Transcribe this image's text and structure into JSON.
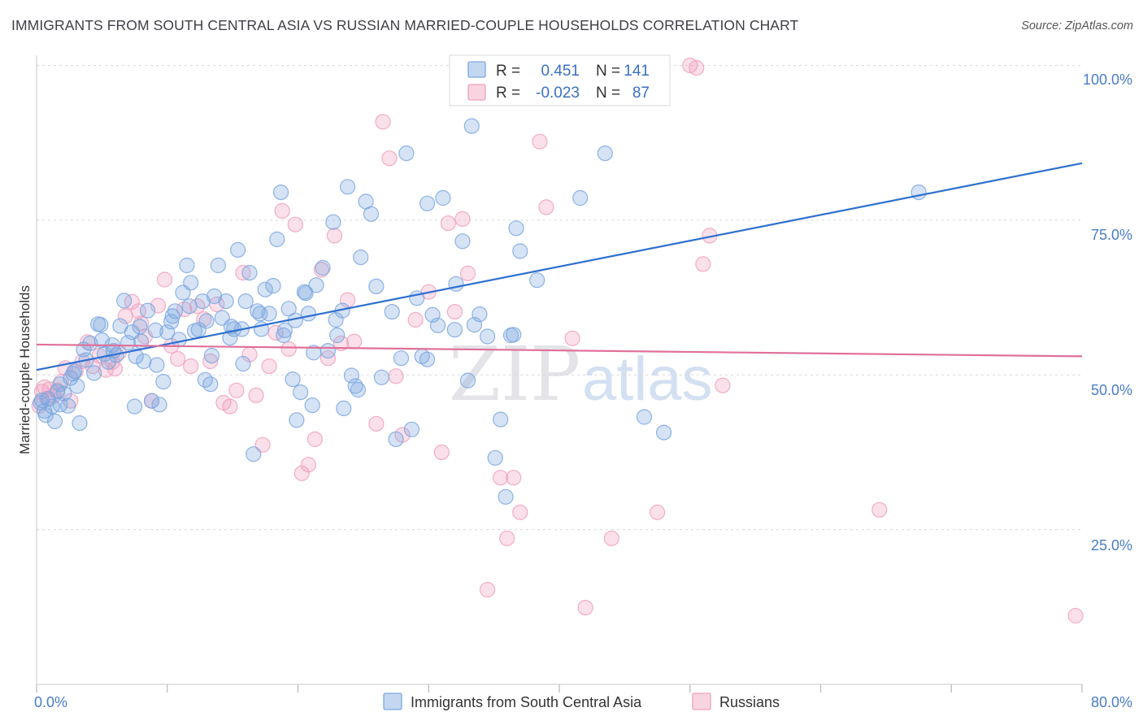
{
  "header": {
    "title": "IMMIGRANTS FROM SOUTH CENTRAL ASIA VS RUSSIAN MARRIED-COUPLE HOUSEHOLDS CORRELATION CHART",
    "source": "Source: ZipAtlas.com"
  },
  "watermark": {
    "zip": "ZIP",
    "atlas": "atlas"
  },
  "legend": {
    "rows": [
      {
        "r_label": "R =",
        "r_value": "0.451",
        "n_label": "N =",
        "n_value": "141"
      },
      {
        "r_label": "R =",
        "r_value": "-0.023",
        "n_label": "N =",
        "n_value": "87"
      }
    ]
  },
  "chart_data": {
    "type": "scatter",
    "title": "IMMIGRANTS FROM SOUTH CENTRAL ASIA VS RUSSIAN MARRIED-COUPLE HOUSEHOLDS CORRELATION CHART",
    "xlabel": "",
    "ylabel": "Married-couple Households",
    "xlim": [
      0,
      80
    ],
    "ylim": [
      0,
      105
    ],
    "x_tick_labels": [
      "0.0%",
      "80.0%"
    ],
    "y_ticks": [
      25,
      50,
      75,
      100
    ],
    "y_tick_labels": [
      "25.0%",
      "50.0%",
      "75.0%",
      "100.0%"
    ],
    "grid": true,
    "legend_position": "top-center",
    "series": [
      {
        "name": "Immigrants from South Central Asia",
        "color": "#7ba7e0",
        "line_color": "#2f6fd0",
        "r": 0.451,
        "n": 141,
        "trend": [
          [
            0,
            50.8
          ],
          [
            80,
            84.2
          ]
        ],
        "points": [
          [
            0.3,
            45.5
          ],
          [
            0.6,
            44.2
          ],
          [
            0.7,
            43.5
          ],
          [
            0.9,
            46.1
          ],
          [
            1.2,
            44.9
          ],
          [
            1.4,
            42.5
          ],
          [
            1.6,
            47.3
          ],
          [
            1.8,
            48.5
          ],
          [
            2.1,
            47.0
          ],
          [
            2.4,
            45.0
          ],
          [
            2.6,
            49.5
          ],
          [
            2.9,
            50.6
          ],
          [
            3.1,
            48.2
          ],
          [
            3.3,
            42.2
          ],
          [
            3.6,
            54.1
          ],
          [
            3.8,
            52.4
          ],
          [
            4.1,
            55.1
          ],
          [
            4.4,
            50.3
          ],
          [
            4.7,
            58.2
          ],
          [
            5.0,
            55.6
          ],
          [
            5.2,
            53.4
          ],
          [
            5.5,
            52.1
          ],
          [
            5.8,
            54.8
          ],
          [
            6.1,
            53.2
          ],
          [
            6.4,
            57.9
          ],
          [
            6.7,
            62.0
          ],
          [
            7.0,
            55.2
          ],
          [
            7.3,
            56.9
          ],
          [
            7.6,
            53.0
          ],
          [
            7.9,
            57.8
          ],
          [
            8.2,
            52.2
          ],
          [
            8.5,
            60.4
          ],
          [
            8.8,
            45.8
          ],
          [
            9.1,
            57.2
          ],
          [
            9.4,
            45.2
          ],
          [
            9.7,
            48.9
          ],
          [
            10.0,
            56.9
          ],
          [
            10.3,
            58.6
          ],
          [
            10.6,
            60.3
          ],
          [
            10.9,
            55.7
          ],
          [
            11.2,
            63.3
          ],
          [
            11.5,
            67.7
          ],
          [
            11.8,
            64.9
          ],
          [
            12.1,
            57.1
          ],
          [
            12.4,
            57.3
          ],
          [
            12.7,
            61.9
          ],
          [
            13.0,
            58.7
          ],
          [
            13.3,
            48.5
          ],
          [
            13.6,
            62.7
          ],
          [
            13.9,
            67.7
          ],
          [
            14.2,
            59.2
          ],
          [
            14.5,
            61.9
          ],
          [
            14.8,
            56.0
          ],
          [
            15.1,
            57.4
          ],
          [
            15.4,
            70.2
          ],
          [
            15.7,
            57.4
          ],
          [
            16.0,
            61.9
          ],
          [
            16.3,
            66.5
          ],
          [
            16.6,
            37.2
          ],
          [
            16.9,
            60.3
          ],
          [
            17.2,
            57.4
          ],
          [
            17.5,
            63.8
          ],
          [
            17.8,
            59.9
          ],
          [
            18.1,
            64.4
          ],
          [
            18.4,
            71.9
          ],
          [
            18.7,
            79.5
          ],
          [
            19.0,
            57.2
          ],
          [
            19.3,
            60.7
          ],
          [
            19.6,
            49.3
          ],
          [
            19.9,
            42.7
          ],
          [
            20.2,
            47.2
          ],
          [
            20.5,
            63.4
          ],
          [
            20.8,
            59.9
          ],
          [
            21.1,
            45.1
          ],
          [
            21.4,
            64.5
          ],
          [
            21.9,
            67.3
          ],
          [
            22.3,
            53.9
          ],
          [
            22.7,
            74.7
          ],
          [
            23.0,
            56.4
          ],
          [
            23.4,
            60.4
          ],
          [
            23.8,
            80.4
          ],
          [
            24.1,
            49.9
          ],
          [
            24.4,
            48.2
          ],
          [
            24.8,
            69.0
          ],
          [
            25.2,
            78.0
          ],
          [
            25.6,
            76.0
          ],
          [
            26.0,
            64.3
          ],
          [
            26.4,
            49.6
          ],
          [
            27.5,
            39.6
          ],
          [
            27.9,
            52.7
          ],
          [
            28.3,
            85.8
          ],
          [
            28.7,
            41.2
          ],
          [
            29.1,
            62.4
          ],
          [
            29.5,
            53.0
          ],
          [
            29.9,
            77.7
          ],
          [
            30.3,
            59.7
          ],
          [
            30.7,
            58.0
          ],
          [
            31.1,
            78.6
          ],
          [
            32.1,
            64.7
          ],
          [
            32.6,
            71.6
          ],
          [
            33.0,
            49.1
          ],
          [
            33.5,
            58.1
          ],
          [
            33.9,
            59.8
          ],
          [
            35.1,
            36.6
          ],
          [
            35.5,
            42.8
          ],
          [
            35.9,
            30.3
          ],
          [
            36.3,
            56.4
          ],
          [
            36.7,
            73.7
          ],
          [
            37.0,
            70.0
          ],
          [
            38.3,
            65.3
          ],
          [
            41.6,
            78.6
          ],
          [
            43.5,
            85.8
          ],
          [
            46.5,
            43.2
          ],
          [
            48.0,
            40.7
          ],
          [
            67.5,
            79.5
          ],
          [
            23.5,
            44.6
          ],
          [
            22.9,
            58.9
          ],
          [
            13.4,
            53.1
          ],
          [
            10.4,
            59.5
          ],
          [
            5.9,
            53.9
          ],
          [
            1.8,
            45.2
          ],
          [
            2.8,
            50.2
          ],
          [
            4.9,
            58.1
          ],
          [
            8.0,
            55.4
          ],
          [
            11.7,
            61.1
          ],
          [
            14.9,
            57.8
          ],
          [
            17.1,
            59.9
          ],
          [
            19.8,
            58.8
          ],
          [
            21.2,
            53.6
          ],
          [
            24.6,
            47.6
          ],
          [
            27.2,
            60.2
          ],
          [
            29.9,
            52.5
          ],
          [
            32.0,
            57.3
          ],
          [
            34.5,
            56.2
          ],
          [
            36.5,
            56.5
          ],
          [
            9.2,
            51.6
          ],
          [
            7.5,
            44.9
          ],
          [
            12.9,
            49.2
          ],
          [
            15.8,
            51.8
          ],
          [
            18.9,
            56.4
          ],
          [
            20.6,
            63.2
          ],
          [
            33.3,
            90.2
          ],
          [
            0.4,
            45.9
          ]
        ]
      },
      {
        "name": "Russians",
        "color": "#f0a0bd",
        "line_color": "#e0709a",
        "r": -0.023,
        "n": 87,
        "trend": [
          [
            0,
            54.9
          ],
          [
            80,
            53.0
          ]
        ],
        "points": [
          [
            0.2,
            45.0
          ],
          [
            0.4,
            47.3
          ],
          [
            0.6,
            48.0
          ],
          [
            0.8,
            46.2
          ],
          [
            1.0,
            47.7
          ],
          [
            1.3,
            46.6
          ],
          [
            1.6,
            47.5
          ],
          [
            1.9,
            48.9
          ],
          [
            2.2,
            51.1
          ],
          [
            2.6,
            45.8
          ],
          [
            3.0,
            50.6
          ],
          [
            3.5,
            52.2
          ],
          [
            3.9,
            55.3
          ],
          [
            4.3,
            51.4
          ],
          [
            4.8,
            53.1
          ],
          [
            5.3,
            50.8
          ],
          [
            5.8,
            52.1
          ],
          [
            6.3,
            53.6
          ],
          [
            6.8,
            59.5
          ],
          [
            7.3,
            61.8
          ],
          [
            7.8,
            60.3
          ],
          [
            8.3,
            56.2
          ],
          [
            8.8,
            45.8
          ],
          [
            9.3,
            61.2
          ],
          [
            9.8,
            65.4
          ],
          [
            10.3,
            54.7
          ],
          [
            10.8,
            52.6
          ],
          [
            11.3,
            60.6
          ],
          [
            11.8,
            51.4
          ],
          [
            12.3,
            61.1
          ],
          [
            12.8,
            59.0
          ],
          [
            13.3,
            52.2
          ],
          [
            13.8,
            61.4
          ],
          [
            14.3,
            45.5
          ],
          [
            14.8,
            44.9
          ],
          [
            15.3,
            47.5
          ],
          [
            15.8,
            66.5
          ],
          [
            16.3,
            53.3
          ],
          [
            16.8,
            46.7
          ],
          [
            17.3,
            38.7
          ],
          [
            17.8,
            51.4
          ],
          [
            18.3,
            56.8
          ],
          [
            18.8,
            76.5
          ],
          [
            19.3,
            54.2
          ],
          [
            19.8,
            74.3
          ],
          [
            20.3,
            34.1
          ],
          [
            20.8,
            35.5
          ],
          [
            21.3,
            39.6
          ],
          [
            21.8,
            67.0
          ],
          [
            22.3,
            52.7
          ],
          [
            22.8,
            72.5
          ],
          [
            23.3,
            55.1
          ],
          [
            23.8,
            62.1
          ],
          [
            24.3,
            55.4
          ],
          [
            26.0,
            42.1
          ],
          [
            26.5,
            90.9
          ],
          [
            27.0,
            85.0
          ],
          [
            27.5,
            49.8
          ],
          [
            28.0,
            40.3
          ],
          [
            29.0,
            58.9
          ],
          [
            30.0,
            63.4
          ],
          [
            31.0,
            37.5
          ],
          [
            31.5,
            74.5
          ],
          [
            32.0,
            60.2
          ],
          [
            32.6,
            75.2
          ],
          [
            33.0,
            66.4
          ],
          [
            34.5,
            15.3
          ],
          [
            35.5,
            33.4
          ],
          [
            36.5,
            33.4
          ],
          [
            37.0,
            27.8
          ],
          [
            37.5,
            100.0
          ],
          [
            38.5,
            87.7
          ],
          [
            39.0,
            77.1
          ],
          [
            41.0,
            55.9
          ],
          [
            42.0,
            12.4
          ],
          [
            44.0,
            23.6
          ],
          [
            47.5,
            27.8
          ],
          [
            50.0,
            100.0
          ],
          [
            50.5,
            99.6
          ],
          [
            51.5,
            72.5
          ],
          [
            51.0,
            67.9
          ],
          [
            52.5,
            48.3
          ],
          [
            64.5,
            28.2
          ],
          [
            79.5,
            11.1
          ],
          [
            36.0,
            23.6
          ],
          [
            6.0,
            51.0
          ],
          [
            8.0,
            58.3
          ]
        ]
      }
    ]
  },
  "bottom_legend": {
    "items": [
      "Immigrants from South Central Asia",
      "Russians"
    ]
  }
}
